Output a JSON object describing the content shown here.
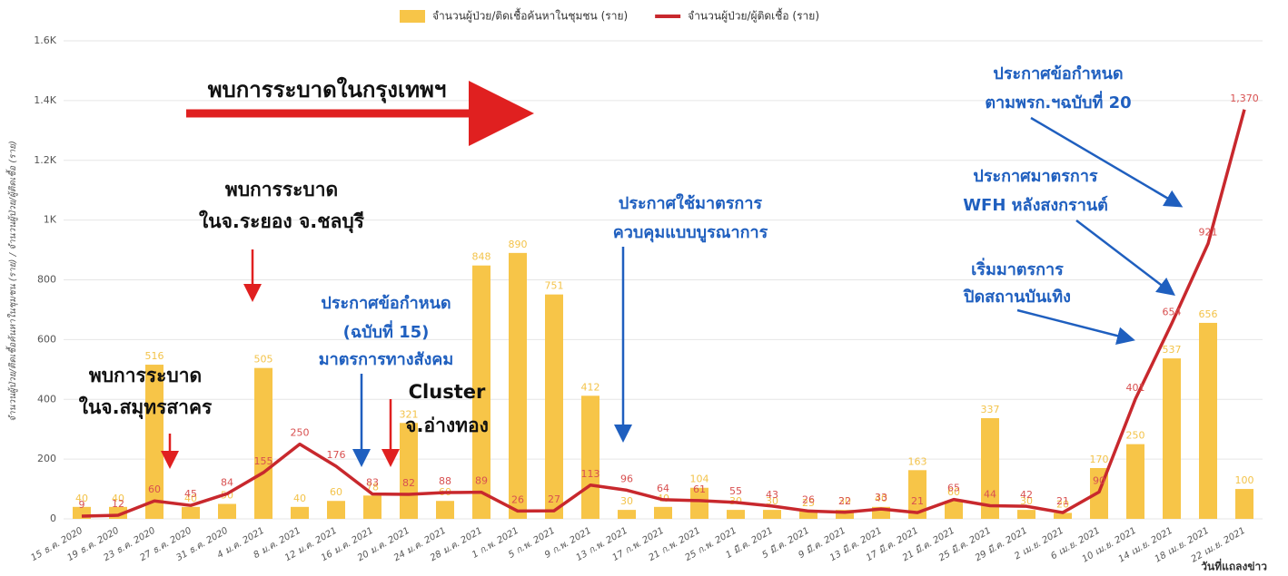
{
  "chart_data": {
    "type": "combo",
    "y_axis_label": "จำนวนผู้ป่วย/ติดเชื้อค้นหาในชุมชน (ราย) / จำนวนผู้ป่วย/ผู้ติดเชื้อ (ราย)",
    "x_axis_label": "วันที่แถลงข่าว",
    "categories": [
      "15 ธ.ค. 2020",
      "19 ธ.ค. 2020",
      "23 ธ.ค. 2020",
      "27 ธ.ค. 2020",
      "31 ธ.ค. 2020",
      "4 ม.ค. 2021",
      "8 ม.ค. 2021",
      "12 ม.ค. 2021",
      "16 ม.ค. 2021",
      "20 ม.ค. 2021",
      "24 ม.ค. 2021",
      "28 ม.ค. 2021",
      "1 ก.พ. 2021",
      "5 ก.พ. 2021",
      "9 ก.พ. 2021",
      "13 ก.พ. 2021",
      "17 ก.พ. 2021",
      "21 ก.พ. 2021",
      "25 ก.พ. 2021",
      "1 มี.ค. 2021",
      "5 มี.ค. 2021",
      "9 มี.ค. 2021",
      "13 มี.ค. 2021",
      "17 มี.ค. 2021",
      "21 มี.ค. 2021",
      "25 มี.ค. 2021",
      "29 มี.ค. 2021",
      "2 เม.ย. 2021",
      "6 เม.ย. 2021",
      "10 เม.ย. 2021",
      "14 เม.ย. 2021",
      "18 เม.ย. 2021",
      "22 เม.ย. 2021"
    ],
    "series": [
      {
        "name": "จำนวนผู้ป่วย/ติดเชื้อค้นหาในชุมชน (ราย)",
        "type": "bar",
        "color": "#f7c548",
        "values": [
          40,
          40,
          516,
          40,
          50,
          505,
          40,
          60,
          78,
          321,
          60,
          848,
          890,
          751,
          412,
          30,
          40,
          104,
          30,
          30,
          25,
          30,
          40,
          163,
          60,
          337,
          30,
          20,
          170,
          250,
          537,
          656,
          100
        ]
      },
      {
        "name": "จำนวนผู้ป่วย/ผู้ติดเชื้อ (ราย)",
        "type": "line",
        "color": "#c8282d",
        "values": [
          9,
          12,
          60,
          45,
          84,
          155,
          250,
          176,
          83,
          82,
          88,
          89,
          26,
          27,
          113,
          96,
          64,
          61,
          55,
          43,
          26,
          22,
          33,
          21,
          65,
          44,
          42,
          21,
          90,
          401,
          654,
          921,
          1370
        ],
        "value_labels": [
          "9",
          "12",
          "60",
          "45",
          "84",
          "155",
          "250",
          "176",
          "83",
          "82",
          "88",
          "89",
          "26",
          "27",
          "113",
          "96",
          "64",
          "61",
          "55",
          "43",
          "26",
          "22",
          "33",
          "21",
          "65",
          "44",
          "42",
          "21",
          "90",
          "401",
          "654",
          "921",
          "1,370"
        ]
      }
    ],
    "ylim": [
      0,
      1600
    ],
    "yticks": [
      0,
      200,
      400,
      600,
      800,
      {
        "value": 1000,
        "label": "1K"
      },
      {
        "value": 1200,
        "label": "1.2K"
      },
      {
        "value": 1400,
        "label": "1.4K"
      },
      {
        "value": 1600,
        "label": "1.6K"
      }
    ],
    "grid": true,
    "legend": "top",
    "annotations": [
      "พบการระบาดในกรุงเทพฯ",
      "พบการระบาด",
      "ในจ.ระยอง จ.ชลบุรี",
      "พบการระบาด",
      "ในจ.สมุทรสาคร",
      "ประกาศข้อกำหนด",
      "(ฉบับที่ 15)",
      "มาตรการทางสังคม",
      "Cluster",
      "จ.อ่างทอง",
      "ประกาศใช้มาตรการ",
      "ควบคุมแบบบูรณาการ",
      "ประกาศข้อกำหนด",
      "ตามพรก.ฯฉบับที่ 20",
      "ประกาศมาตรการ",
      "WFH หลังสงกรานต์",
      "เริ่มมาตรการ",
      "ปิดสถานบันเทิง"
    ]
  }
}
